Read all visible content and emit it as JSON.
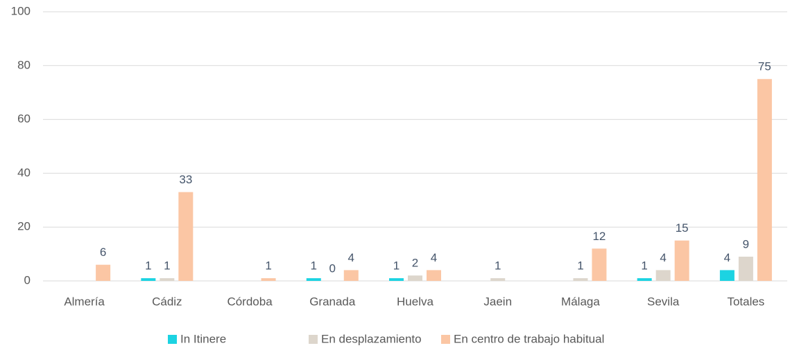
{
  "chart_data": {
    "type": "bar",
    "categories": [
      "Almería",
      "Cádiz",
      "Córdoba",
      "Granada",
      "Huelva",
      "Jaein",
      "Málaga",
      "Sevila",
      "Totales"
    ],
    "series": [
      {
        "name": "In Itinere",
        "color": "#1cd3e2",
        "values": [
          null,
          1,
          null,
          1,
          1,
          null,
          null,
          1,
          4
        ]
      },
      {
        "name": "En desplazamiento",
        "color": "#ddd6cc",
        "values": [
          null,
          1,
          null,
          0,
          2,
          1,
          1,
          4,
          9
        ]
      },
      {
        "name": "En centro de trabajo habitual",
        "color": "#fbc6a4",
        "values": [
          6,
          33,
          1,
          4,
          4,
          null,
          12,
          15,
          75
        ]
      }
    ],
    "ylim": [
      0,
      100
    ],
    "yticks": [
      0,
      20,
      40,
      60,
      80,
      100
    ],
    "grid": true,
    "legend": "bottom"
  }
}
